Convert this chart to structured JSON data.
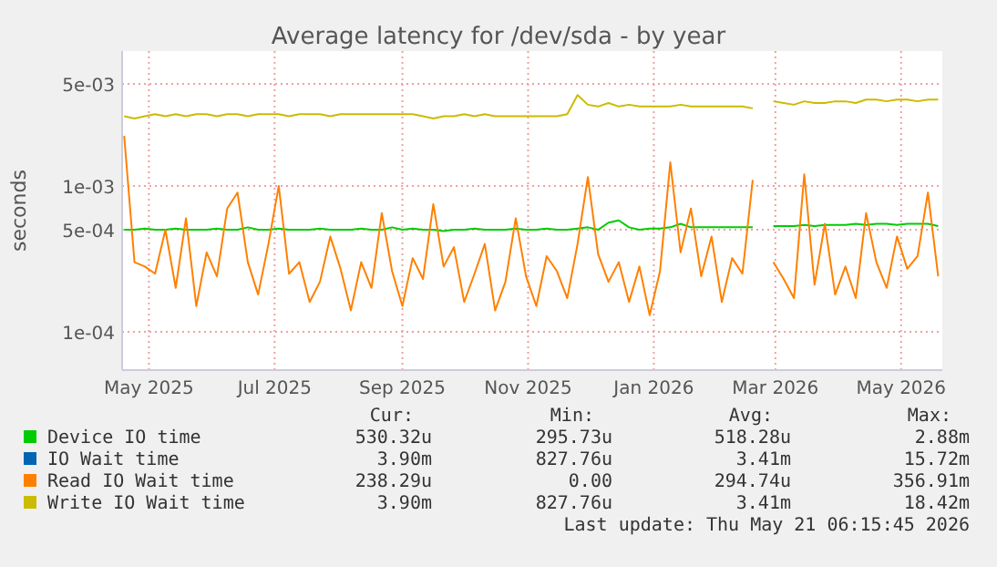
{
  "chart_data": {
    "type": "line",
    "title": "Average latency for /dev/sda - by year",
    "ylabel": "seconds",
    "log": "y",
    "grid": true,
    "legend": "bottom",
    "marker": "none",
    "line_style": "solid",
    "xlim": [
      "2025-04-18",
      "2026-05-21"
    ],
    "xticks": [
      {
        "value": "2025-05-01",
        "label": "May 2025"
      },
      {
        "value": "2025-07-01",
        "label": "Jul 2025"
      },
      {
        "value": "2025-09-01",
        "label": "Sep 2025"
      },
      {
        "value": "2025-11-01",
        "label": "Nov 2025"
      },
      {
        "value": "2026-01-01",
        "label": "Jan 2026"
      },
      {
        "value": "2026-03-01",
        "label": "Mar 2026"
      },
      {
        "value": "2026-05-01",
        "label": "May 2026"
      }
    ],
    "ylim": [
      5.46e-05,
      0.0084
    ],
    "yticks": [
      {
        "value": 0.0001,
        "label": "1e-04"
      },
      {
        "value": 0.0005,
        "label": "5e-04"
      },
      {
        "value": 0.001,
        "label": "1e-03"
      },
      {
        "value": 0.005,
        "label": "5e-03"
      }
    ],
    "x": [
      "2025-04-19",
      "2025-04-24",
      "2025-04-29",
      "2025-05-04",
      "2025-05-09",
      "2025-05-14",
      "2025-05-19",
      "2025-05-24",
      "2025-05-29",
      "2025-06-03",
      "2025-06-08",
      "2025-06-13",
      "2025-06-18",
      "2025-06-23",
      "2025-06-28",
      "2025-07-03",
      "2025-07-08",
      "2025-07-13",
      "2025-07-18",
      "2025-07-23",
      "2025-07-28",
      "2025-08-02",
      "2025-08-07",
      "2025-08-12",
      "2025-08-17",
      "2025-08-22",
      "2025-08-27",
      "2025-09-01",
      "2025-09-06",
      "2025-09-11",
      "2025-09-16",
      "2025-09-21",
      "2025-09-26",
      "2025-10-01",
      "2025-10-06",
      "2025-10-11",
      "2025-10-16",
      "2025-10-21",
      "2025-10-26",
      "2025-10-31",
      "2025-11-05",
      "2025-11-10",
      "2025-11-15",
      "2025-11-20",
      "2025-11-25",
      "2025-11-30",
      "2025-12-05",
      "2025-12-10",
      "2025-12-15",
      "2025-12-20",
      "2025-12-25",
      "2025-12-30",
      "2026-01-04",
      "2026-01-09",
      "2026-01-14",
      "2026-01-19",
      "2026-01-24",
      "2026-01-29",
      "2026-02-03",
      "2026-02-08",
      "2026-02-13",
      "2026-02-18",
      "2026-02-23",
      "2026-02-28",
      "2026-03-05",
      "2026-03-10",
      "2026-03-15",
      "2026-03-20",
      "2026-03-25",
      "2026-03-30",
      "2026-04-04",
      "2026-04-09",
      "2026-04-14",
      "2026-04-19",
      "2026-04-24",
      "2026-04-29",
      "2026-05-04",
      "2026-05-09",
      "2026-05-14",
      "2026-05-19"
    ],
    "series": [
      {
        "name": "Device IO time",
        "color": "#00cc00",
        "values": [
          0.0005,
          0.0005,
          0.00051,
          0.0005,
          0.0005,
          0.00051,
          0.0005,
          0.0005,
          0.0005,
          0.00051,
          0.0005,
          0.0005,
          0.00052,
          0.0005,
          0.0005,
          0.00051,
          0.0005,
          0.0005,
          0.0005,
          0.00051,
          0.0005,
          0.0005,
          0.0005,
          0.00051,
          0.0005,
          0.0005,
          0.00052,
          0.0005,
          0.00051,
          0.0005,
          0.0005,
          0.00049,
          0.0005,
          0.0005,
          0.00051,
          0.0005,
          0.0005,
          0.0005,
          0.00051,
          0.0005,
          0.0005,
          0.00051,
          0.0005,
          0.0005,
          0.00051,
          0.00052,
          0.0005,
          0.00056,
          0.00058,
          0.00052,
          0.0005,
          0.00051,
          0.00051,
          0.00052,
          0.00055,
          0.00052,
          0.00052,
          0.00052,
          0.00052,
          0.00052,
          0.00052,
          0.00052,
          null,
          0.00053,
          0.00053,
          0.00053,
          0.00054,
          0.00053,
          0.00054,
          0.00054,
          0.00054,
          0.00055,
          0.00054,
          0.00055,
          0.00055,
          0.00054,
          0.00055,
          0.00055,
          0.00055,
          0.00053
        ]
      },
      {
        "name": "IO Wait time",
        "color": "#0066b3",
        "values": [
          null,
          null,
          null,
          null,
          null,
          null,
          null,
          null,
          null,
          null,
          null,
          null,
          null,
          null,
          null,
          null,
          null,
          null,
          null,
          null,
          null,
          null,
          null,
          null,
          null,
          null,
          null,
          null,
          null,
          null,
          null,
          null,
          null,
          null,
          null,
          null,
          null,
          null,
          null,
          null,
          null,
          null,
          null,
          null,
          null,
          null,
          null,
          null,
          null,
          null,
          null,
          null,
          null,
          null,
          null,
          null,
          null,
          null,
          null,
          null,
          null,
          null,
          null,
          null,
          null,
          null,
          null,
          null,
          null,
          null,
          null,
          null,
          null,
          null,
          null,
          null,
          null,
          null,
          null,
          null
        ]
      },
      {
        "name": "Read IO Wait time",
        "color": "#ff8000",
        "values": [
          0.0022,
          0.0003,
          0.00028,
          0.00025,
          0.0005,
          0.0002,
          0.0006,
          0.00015,
          0.00035,
          0.00024,
          0.0007,
          0.0009,
          0.0003,
          0.00018,
          0.0004,
          0.001,
          0.00025,
          0.0003,
          0.00016,
          0.00022,
          0.00045,
          0.00027,
          0.00014,
          0.0003,
          0.0002,
          0.00065,
          0.00026,
          0.00015,
          0.00032,
          0.00023,
          0.00075,
          0.00028,
          0.00038,
          0.00016,
          0.00025,
          0.0004,
          0.00014,
          0.00022,
          0.0006,
          0.00024,
          0.00015,
          0.00033,
          0.00026,
          0.00017,
          0.0004,
          0.00115,
          0.00034,
          0.00022,
          0.0003,
          0.00016,
          0.00028,
          0.00013,
          0.00026,
          0.00145,
          0.00035,
          0.0007,
          0.00024,
          0.00045,
          0.00016,
          0.00032,
          0.00025,
          0.0011,
          null,
          0.0003,
          0.00023,
          0.00017,
          0.0012,
          0.00021,
          0.00055,
          0.00018,
          0.00028,
          0.00017,
          0.00065,
          0.0003,
          0.0002,
          0.00045,
          0.00027,
          0.00033,
          0.0009,
          0.00024
        ]
      },
      {
        "name": "Write IO Wait time",
        "color": "#ccbb00",
        "values": [
          0.003,
          0.0029,
          0.003,
          0.0031,
          0.003,
          0.0031,
          0.003,
          0.0031,
          0.0031,
          0.003,
          0.0031,
          0.0031,
          0.003,
          0.0031,
          0.0031,
          0.0031,
          0.003,
          0.0031,
          0.0031,
          0.0031,
          0.003,
          0.0031,
          0.0031,
          0.0031,
          0.0031,
          0.0031,
          0.0031,
          0.0031,
          0.0031,
          0.003,
          0.0029,
          0.003,
          0.003,
          0.0031,
          0.003,
          0.0031,
          0.003,
          0.003,
          0.003,
          0.003,
          0.003,
          0.003,
          0.003,
          0.0031,
          0.0042,
          0.0036,
          0.0035,
          0.0037,
          0.0035,
          0.0036,
          0.0035,
          0.0035,
          0.0035,
          0.0035,
          0.0036,
          0.0035,
          0.0035,
          0.0035,
          0.0035,
          0.0035,
          0.0035,
          0.0034,
          null,
          0.0038,
          0.0037,
          0.0036,
          0.0038,
          0.0037,
          0.0037,
          0.0038,
          0.0038,
          0.0037,
          0.0039,
          0.0039,
          0.0038,
          0.0039,
          0.0039,
          0.0038,
          0.0039,
          0.0039
        ]
      }
    ],
    "annotations": [
      "Cur:",
      "Min:",
      "Avg:",
      "Max:",
      "530.32u",
      "295.73u",
      "518.28u",
      "2.88m",
      "3.90m",
      "827.76u",
      "3.41m",
      "15.72m",
      "238.29u",
      "0.00",
      "294.74u",
      "356.91m",
      "3.90m",
      "827.76u",
      "3.41m",
      "18.42m",
      "Last update: Thu May 21 06:15:45 2026"
    ]
  }
}
